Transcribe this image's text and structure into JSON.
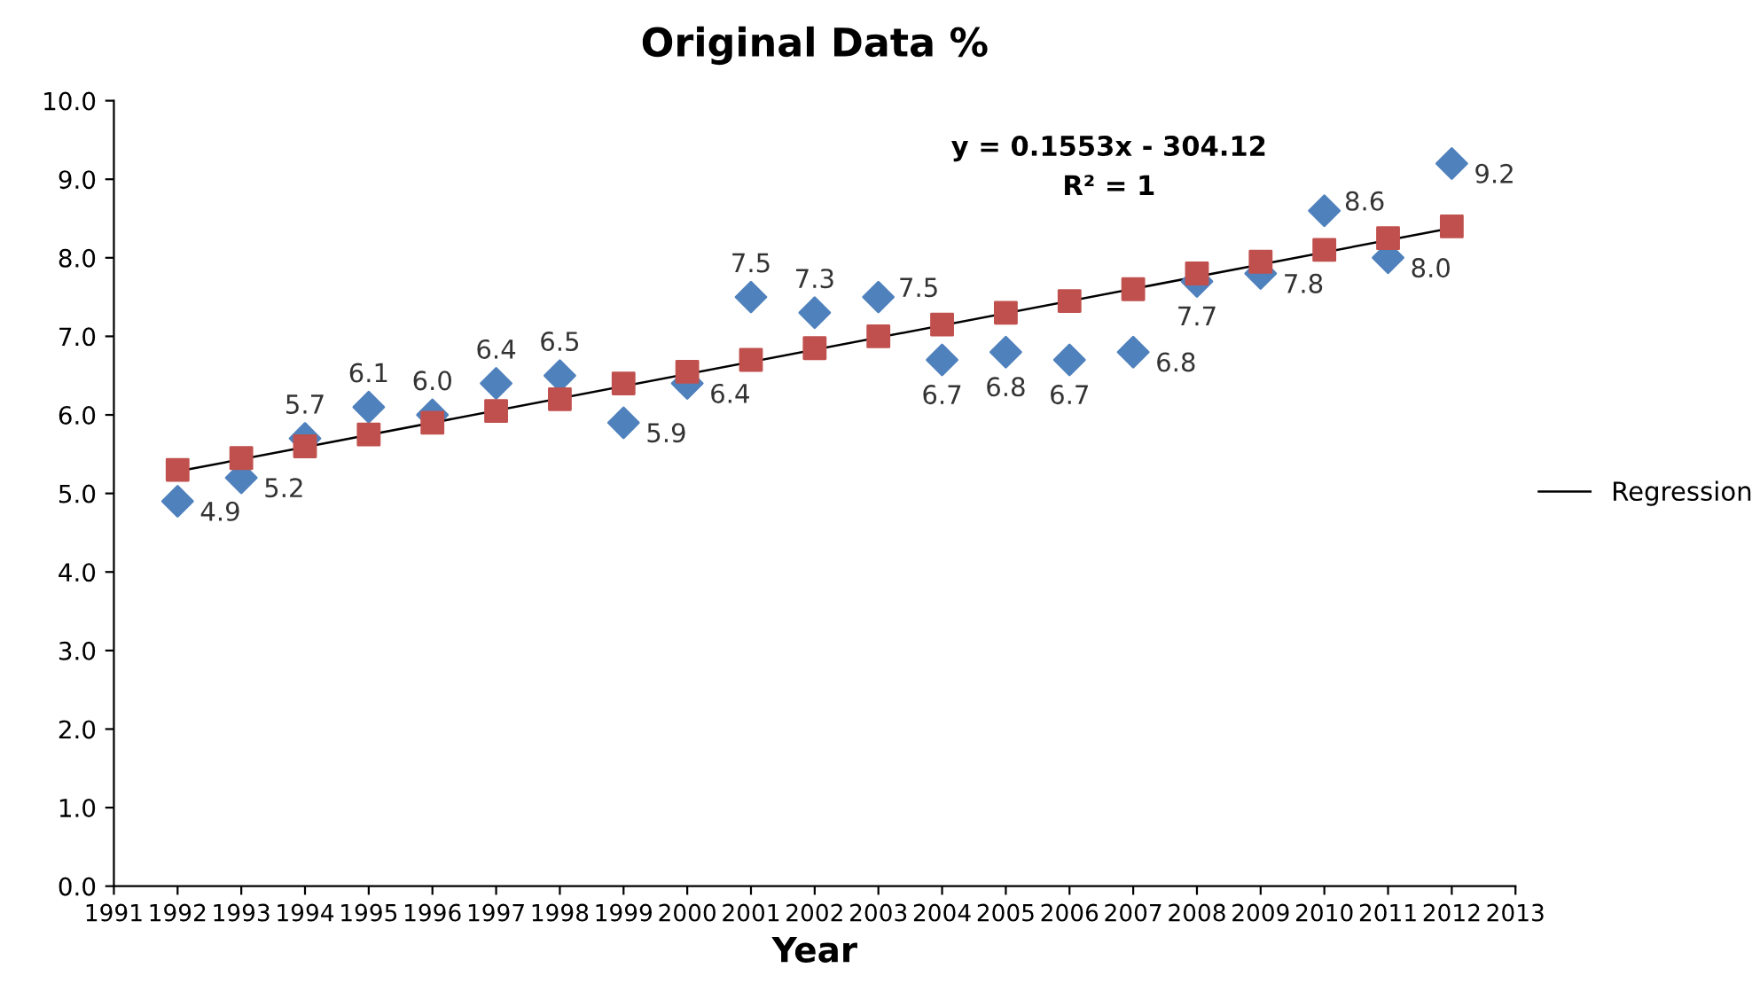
{
  "chart_data": {
    "type": "scatter",
    "title": "Original Data %",
    "xlabel": "Year",
    "x": [
      1992,
      1993,
      1994,
      1995,
      1996,
      1997,
      1998,
      1999,
      2000,
      2001,
      2002,
      2003,
      2004,
      2005,
      2006,
      2007,
      2008,
      2009,
      2010,
      2011,
      2012
    ],
    "series": [
      {
        "type": "line",
        "name": "Regression",
        "color": "#000000",
        "x": [
          1992,
          2012
        ],
        "values": [
          5.28,
          8.38
        ],
        "marker": "none"
      },
      {
        "color": "#4f81bd",
        "marker": "diamond",
        "values": [
          4.9,
          5.2,
          5.7,
          6.1,
          6.0,
          6.4,
          6.5,
          5.9,
          6.4,
          7.5,
          7.3,
          7.5,
          6.7,
          6.8,
          6.7,
          6.8,
          7.7,
          7.8,
          8.6,
          8.0,
          9.2
        ],
        "value_labels": [
          "4.9",
          "5.2",
          "5.7",
          "6.1",
          "6.0",
          "6.4",
          "6.5",
          "5.9",
          "6.4",
          "7.5",
          "7.3",
          "7.5",
          "6.7",
          "6.8",
          "6.7",
          "6.8",
          "7.7",
          "7.8",
          "8.6",
          "8.0",
          "9.2"
        ]
      },
      {
        "color": "#c0504d",
        "marker": "square",
        "values": [
          5.3,
          5.45,
          5.6,
          5.75,
          5.9,
          6.05,
          6.2,
          6.4,
          6.55,
          6.7,
          6.85,
          7.0,
          7.15,
          7.3,
          7.45,
          7.6,
          7.8,
          7.95,
          8.1,
          8.25,
          8.4
        ]
      }
    ],
    "annotations": [
      "y = 0.1553x - 304.12",
      "R² = 1"
    ],
    "xlim": [
      1991,
      2013
    ],
    "xticks": [
      1991,
      1992,
      1993,
      1994,
      1995,
      1996,
      1997,
      1998,
      1999,
      2000,
      2001,
      2002,
      2003,
      2004,
      2005,
      2006,
      2007,
      2008,
      2009,
      2010,
      2011,
      2012,
      2013
    ],
    "ylim": [
      0,
      10
    ],
    "yticks": [
      {
        "value": 0,
        "label": "0.0"
      },
      {
        "value": 1,
        "label": "1.0"
      },
      {
        "value": 2,
        "label": "2.0"
      },
      {
        "value": 3,
        "label": "3.0"
      },
      {
        "value": 4,
        "label": "4.0"
      },
      {
        "value": 5,
        "label": "5.0"
      },
      {
        "value": 6,
        "label": "6.0"
      },
      {
        "value": 7,
        "label": "7.0"
      },
      {
        "value": 8,
        "label": "8.0"
      },
      {
        "value": 9,
        "label": "9.0"
      },
      {
        "value": 10,
        "label": "10.0"
      }
    ],
    "grid": false,
    "legend": "right"
  }
}
